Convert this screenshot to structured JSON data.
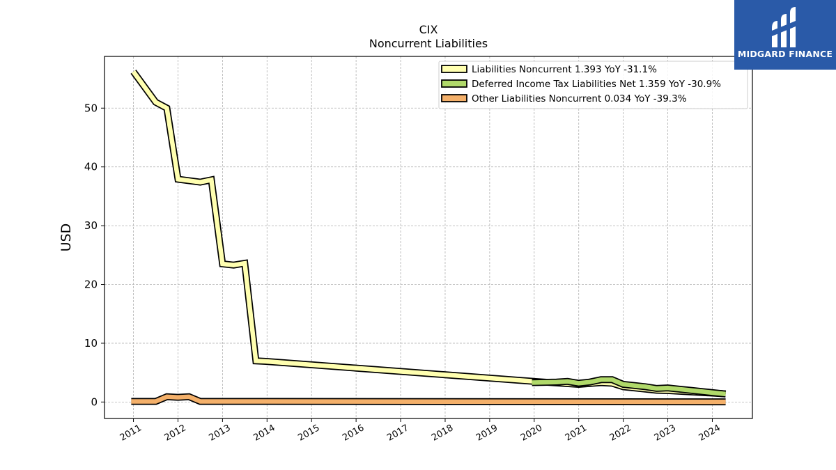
{
  "chart_data": {
    "type": "line",
    "title": "CIX",
    "subtitle": "Noncurrent  Liabilities",
    "ylabel": "USD",
    "xlabel": "",
    "xlim": [
      2010.35,
      2024.9
    ],
    "ylim": [
      -2.8,
      58.8
    ],
    "yticks": [
      0,
      10,
      20,
      30,
      40,
      50
    ],
    "xticks": [
      "2011",
      "2012",
      "2013",
      "2014",
      "2015",
      "2016",
      "2017",
      "2018",
      "2019",
      "2020",
      "2021",
      "2022",
      "2023",
      "2024"
    ],
    "grid": true,
    "legend_position": "top-right",
    "series": [
      {
        "name": "Liabilities Noncurrent  1.393 YoY -31.1%",
        "color": "#ffffb0",
        "points": [
          [
            2011.0,
            56.2
          ],
          [
            2011.5,
            51.0
          ],
          [
            2011.75,
            50.0
          ],
          [
            2012.0,
            37.9
          ],
          [
            2012.5,
            37.4
          ],
          [
            2012.75,
            37.8
          ],
          [
            2013.0,
            23.5
          ],
          [
            2013.25,
            23.3
          ],
          [
            2013.5,
            23.6
          ],
          [
            2013.75,
            7.0
          ],
          [
            2014.0,
            6.9
          ],
          [
            2020.0,
            3.5
          ],
          [
            2021.0,
            3.0
          ],
          [
            2021.5,
            3.3
          ],
          [
            2021.75,
            3.2
          ],
          [
            2022.0,
            2.6
          ],
          [
            2022.5,
            2.2
          ],
          [
            2022.75,
            2.0
          ],
          [
            2023.0,
            1.95
          ],
          [
            2024.3,
            1.393
          ]
        ]
      },
      {
        "name": "Deferred Income Tax Liabilities Net  1.359 YoY -30.9%",
        "color": "#b0d96a",
        "points": [
          [
            2019.95,
            3.3
          ],
          [
            2020.5,
            3.4
          ],
          [
            2020.75,
            3.5
          ],
          [
            2021.0,
            3.2
          ],
          [
            2021.25,
            3.4
          ],
          [
            2021.5,
            3.8
          ],
          [
            2021.75,
            3.8
          ],
          [
            2022.0,
            3.0
          ],
          [
            2022.5,
            2.6
          ],
          [
            2022.75,
            2.3
          ],
          [
            2023.0,
            2.4
          ],
          [
            2023.25,
            2.2
          ],
          [
            2023.5,
            2.0
          ],
          [
            2024.3,
            1.359
          ]
        ]
      },
      {
        "name": "Other Liabilities Noncurrent  0.034 YoY -39.3%",
        "color": "#f4b06a",
        "points": [
          [
            2010.95,
            0.1
          ],
          [
            2011.5,
            0.1
          ],
          [
            2011.75,
            0.9
          ],
          [
            2012.0,
            0.8
          ],
          [
            2012.25,
            0.9
          ],
          [
            2012.5,
            0.1
          ],
          [
            2014.0,
            0.1
          ],
          [
            2024.3,
            0.034
          ]
        ]
      }
    ]
  },
  "logo": {
    "text": "MIDGARD FINANCE",
    "background": "#2a5aa8"
  }
}
